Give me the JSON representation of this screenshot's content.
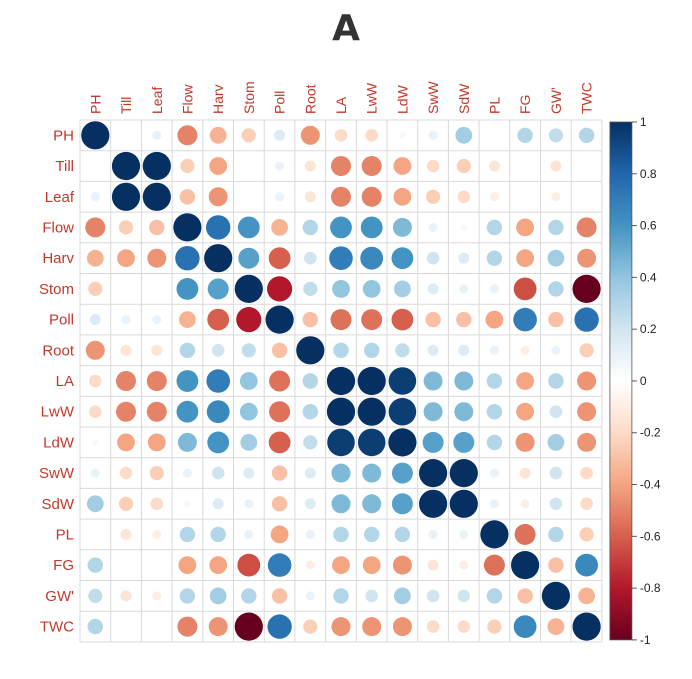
{
  "chart_data": {
    "type": "heatmap",
    "title": "A",
    "variables": [
      "PH",
      "Till",
      "Leaf",
      "Flow",
      "Harv",
      "Stom",
      "Poll",
      "Root",
      "LA",
      "LwW",
      "LdW",
      "SwW",
      "SdW",
      "PL",
      "FG",
      "GW'",
      "TWC"
    ],
    "matrix": [
      [
        1,
        0,
        0.1,
        -0.5,
        -0.35,
        -0.25,
        0.15,
        -0.45,
        -0.2,
        -0.2,
        -0.05,
        0.1,
        0.35,
        0,
        0.3,
        0.25,
        0.3
      ],
      [
        0,
        1,
        1,
        -0.25,
        -0.4,
        0,
        0.1,
        -0.15,
        -0.5,
        -0.5,
        -0.4,
        -0.2,
        -0.25,
        -0.15,
        0,
        -0.15,
        0
      ],
      [
        0.1,
        1,
        1,
        -0.3,
        -0.45,
        0,
        0.1,
        -0.15,
        -0.5,
        -0.5,
        -0.4,
        -0.25,
        -0.2,
        -0.1,
        0,
        -0.1,
        0
      ],
      [
        -0.5,
        -0.25,
        -0.3,
        1,
        0.75,
        0.6,
        -0.35,
        0.3,
        0.6,
        0.6,
        0.45,
        0.1,
        0.05,
        0.3,
        -0.4,
        0.3,
        -0.5
      ],
      [
        -0.35,
        -0.4,
        -0.45,
        0.75,
        1,
        0.55,
        -0.6,
        0.2,
        0.7,
        0.65,
        0.6,
        0.2,
        0.15,
        0.3,
        -0.4,
        0.35,
        -0.45
      ],
      [
        -0.25,
        0,
        0,
        0.6,
        0.55,
        1,
        -0.8,
        0.25,
        0.4,
        0.4,
        0.35,
        0.15,
        0.1,
        0.1,
        -0.65,
        0.3,
        -1
      ],
      [
        0.15,
        0.1,
        0.1,
        -0.35,
        -0.6,
        -0.8,
        1,
        -0.3,
        -0.55,
        -0.55,
        -0.6,
        -0.3,
        -0.3,
        -0.4,
        0.7,
        -0.3,
        0.75
      ],
      [
        -0.45,
        -0.15,
        -0.15,
        0.3,
        0.2,
        0.25,
        -0.3,
        1,
        0.3,
        0.3,
        0.25,
        0.15,
        0.15,
        0.1,
        -0.1,
        0.1,
        -0.25
      ],
      [
        -0.2,
        -0.5,
        -0.5,
        0.6,
        0.7,
        0.4,
        -0.55,
        0.3,
        1,
        1,
        0.95,
        0.45,
        0.45,
        0.3,
        -0.4,
        0.3,
        -0.45
      ],
      [
        -0.2,
        -0.5,
        -0.5,
        0.6,
        0.65,
        0.4,
        -0.55,
        0.3,
        1,
        1,
        0.95,
        0.45,
        0.45,
        0.3,
        -0.4,
        0.2,
        -0.45
      ],
      [
        -0.05,
        -0.4,
        -0.4,
        0.45,
        0.6,
        0.35,
        -0.6,
        0.25,
        0.95,
        0.95,
        1,
        0.55,
        0.55,
        0.3,
        -0.45,
        0.35,
        -0.45
      ],
      [
        0.1,
        -0.2,
        -0.25,
        0.1,
        0.2,
        0.15,
        -0.3,
        0.15,
        0.45,
        0.45,
        0.55,
        1,
        1,
        0.1,
        -0.15,
        0.2,
        -0.2
      ],
      [
        0.35,
        -0.25,
        -0.2,
        0.05,
        0.15,
        0.1,
        -0.3,
        0.15,
        0.45,
        0.45,
        0.55,
        1,
        1,
        0.1,
        -0.1,
        0.2,
        -0.2
      ],
      [
        0,
        -0.15,
        -0.1,
        0.3,
        0.3,
        0.1,
        -0.4,
        0.1,
        0.3,
        0.3,
        0.3,
        0.1,
        0.1,
        1,
        -0.55,
        0.3,
        -0.25
      ],
      [
        0.3,
        0,
        0,
        -0.4,
        -0.4,
        -0.65,
        0.7,
        -0.1,
        -0.4,
        -0.4,
        -0.45,
        -0.15,
        -0.1,
        -0.55,
        1,
        -0.3,
        0.65
      ],
      [
        0.25,
        -0.15,
        -0.1,
        0.3,
        0.35,
        0.3,
        -0.3,
        0.1,
        0.3,
        0.2,
        0.35,
        0.2,
        0.2,
        0.3,
        -0.3,
        1,
        -0.35
      ],
      [
        0.3,
        0,
        0,
        -0.5,
        -0.45,
        -1,
        0.75,
        -0.25,
        -0.45,
        -0.45,
        -0.45,
        -0.2,
        -0.2,
        -0.25,
        0.65,
        -0.35,
        1
      ]
    ],
    "color_scale": {
      "min": -1,
      "max": 1,
      "ticks": [
        "1",
        "0.8",
        "0.6",
        "0.4",
        "0.2",
        "0",
        "-0.2",
        "-0.4",
        "-0.6",
        "-0.8",
        "-1"
      ],
      "stops": [
        "#67001f",
        "#b2182b",
        "#d6604d",
        "#f4a582",
        "#fddbc7",
        "#ffffff",
        "#d1e5f0",
        "#92c5de",
        "#4393c3",
        "#2166ac",
        "#053061"
      ]
    },
    "label_color": "#c0392b",
    "grid": true,
    "legend_placement": "right"
  }
}
